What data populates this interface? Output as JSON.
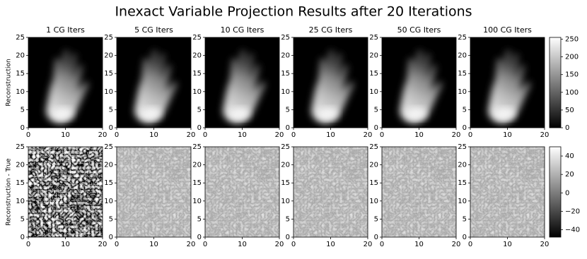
{
  "title": "Inexact Variable Projection Results after 20 Iterations",
  "chart_data": [
    {
      "type": "heatmap",
      "title": "1 CG Iters",
      "ylabel": "Reconstruction",
      "xlim": [
        0,
        20
      ],
      "ylim": [
        0,
        25
      ],
      "xticks": [
        0,
        10,
        20
      ],
      "yticks": [
        0,
        5,
        10,
        15,
        20,
        25
      ]
    },
    {
      "type": "heatmap",
      "title": "5 CG Iters",
      "xlim": [
        0,
        20
      ],
      "ylim": [
        0,
        25
      ],
      "xticks": [
        0,
        10,
        20
      ],
      "yticks": [
        0,
        5,
        10,
        15,
        20,
        25
      ]
    },
    {
      "type": "heatmap",
      "title": "10 CG Iters",
      "xlim": [
        0,
        20
      ],
      "ylim": [
        0,
        25
      ],
      "xticks": [
        0,
        10,
        20
      ],
      "yticks": [
        0,
        5,
        10,
        15,
        20,
        25
      ]
    },
    {
      "type": "heatmap",
      "title": "25 CG Iters",
      "xlim": [
        0,
        20
      ],
      "ylim": [
        0,
        25
      ],
      "xticks": [
        0,
        10,
        20
      ],
      "yticks": [
        0,
        5,
        10,
        15,
        20,
        25
      ]
    },
    {
      "type": "heatmap",
      "title": "50 CG Iters",
      "xlim": [
        0,
        20
      ],
      "ylim": [
        0,
        25
      ],
      "xticks": [
        0,
        10,
        20
      ],
      "yticks": [
        0,
        5,
        10,
        15,
        20,
        25
      ]
    },
    {
      "type": "heatmap",
      "title": "100 CG Iters",
      "xlim": [
        0,
        20
      ],
      "ylim": [
        0,
        25
      ],
      "xticks": [
        0,
        10,
        20
      ],
      "yticks": [
        0,
        5,
        10,
        15,
        20,
        25
      ]
    },
    {
      "type": "heatmap",
      "ylabel": "Reconstruction - True",
      "xlim": [
        0,
        20
      ],
      "ylim": [
        0,
        25
      ],
      "xticks": [
        0,
        10,
        20
      ],
      "yticks": [
        0,
        5,
        10,
        15,
        20,
        25
      ]
    },
    {
      "type": "heatmap",
      "xlim": [
        0,
        20
      ],
      "ylim": [
        0,
        25
      ],
      "xticks": [
        0,
        10,
        20
      ],
      "yticks": [
        0,
        5,
        10,
        15,
        20,
        25
      ]
    },
    {
      "type": "heatmap",
      "xlim": [
        0,
        20
      ],
      "ylim": [
        0,
        25
      ],
      "xticks": [
        0,
        10,
        20
      ],
      "yticks": [
        0,
        5,
        10,
        15,
        20,
        25
      ]
    },
    {
      "type": "heatmap",
      "xlim": [
        0,
        20
      ],
      "ylim": [
        0,
        25
      ],
      "xticks": [
        0,
        10,
        20
      ],
      "yticks": [
        0,
        5,
        10,
        15,
        20,
        25
      ]
    },
    {
      "type": "heatmap",
      "xlim": [
        0,
        20
      ],
      "ylim": [
        0,
        25
      ],
      "xticks": [
        0,
        10,
        20
      ],
      "yticks": [
        0,
        5,
        10,
        15,
        20,
        25
      ]
    },
    {
      "type": "heatmap",
      "xlim": [
        0,
        20
      ],
      "ylim": [
        0,
        25
      ],
      "xticks": [
        0,
        10,
        20
      ],
      "yticks": [
        0,
        5,
        10,
        15,
        20,
        25
      ]
    }
  ],
  "colorbars": [
    {
      "clim": [
        0,
        255
      ],
      "ticks": [
        0,
        50,
        100,
        150,
        200,
        250
      ]
    },
    {
      "clim": [
        -48,
        50
      ],
      "ticks": [
        {
          "value": -40,
          "label": "−40"
        },
        {
          "value": -20,
          "label": "−20"
        },
        0,
        20,
        40
      ]
    }
  ]
}
